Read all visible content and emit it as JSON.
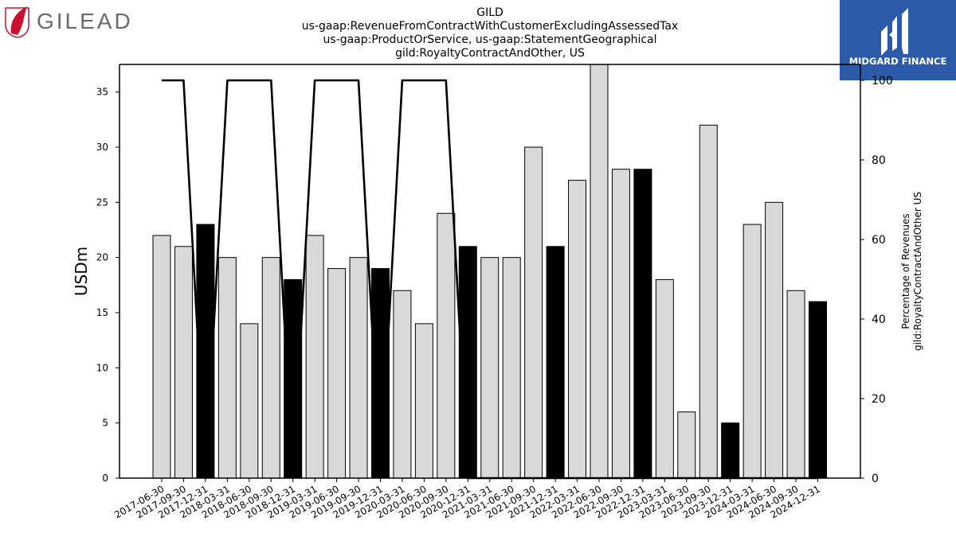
{
  "logos": {
    "left": {
      "text": "GILEAD",
      "color": "#6b6b6b",
      "accent": "#c8102e"
    },
    "right": {
      "text": "MIDGARD FINANCE",
      "bg": "#2b5aa9",
      "fg": "#ffffff"
    }
  },
  "chart_data": {
    "type": "bar",
    "title_lines": [
      "GILD",
      "us-gaap:RevenueFromContractWithCustomerExcludingAssessedTax",
      "us-gaap:ProductOrService, us-gaap:StatementGeographical",
      "gild:RoyaltyContractAndOther, US"
    ],
    "ylabel": "USDm",
    "ylabel_right": [
      "Percentage of Revenues",
      "gild:RoyaltyContractAndOther US"
    ],
    "ylim": [
      0,
      37.5
    ],
    "yticks": [
      0,
      5,
      10,
      15,
      20,
      25,
      30,
      35
    ],
    "ylim_right": [
      0,
      104
    ],
    "yticks_right": [
      0,
      20,
      40,
      60,
      80,
      100
    ],
    "categories": [
      "2017-06-30",
      "2017-09-30",
      "2017-12-31",
      "2018-03-31",
      "2018-06-30",
      "2018-09-30",
      "2018-12-31",
      "2019-03-31",
      "2019-06-30",
      "2019-09-30",
      "2019-12-31",
      "2020-03-31",
      "2020-06-30",
      "2020-09-30",
      "2020-12-31",
      "2021-03-31",
      "2021-06-30",
      "2021-09-30",
      "2021-12-31",
      "2022-03-31",
      "2022-06-30",
      "2022-09-30",
      "2022-12-31",
      "2023-03-31",
      "2023-06-30",
      "2023-09-30",
      "2023-12-31",
      "2024-03-31",
      "2024-06-30",
      "2024-09-30",
      "2024-12-31"
    ],
    "series": [
      {
        "type": "bar",
        "values": [
          22,
          21,
          23,
          20,
          14,
          20,
          18,
          22,
          19,
          20,
          19,
          17,
          14,
          24,
          21,
          20,
          20,
          30,
          21,
          27,
          38,
          28,
          28,
          18,
          6,
          32,
          5,
          23,
          25,
          17,
          16
        ],
        "highlight": [
          false,
          false,
          true,
          false,
          false,
          false,
          true,
          false,
          false,
          false,
          true,
          false,
          false,
          false,
          true,
          false,
          false,
          false,
          true,
          false,
          false,
          false,
          true,
          false,
          false,
          false,
          true,
          false,
          false,
          false,
          true
        ],
        "color": "#d9d9d9",
        "highlight_color": "#000000"
      },
      {
        "type": "line",
        "axis": "right",
        "values": [
          100,
          100,
          0,
          100,
          100,
          100,
          0,
          100,
          100,
          100,
          0,
          100,
          100,
          100,
          0,
          0,
          0,
          0,
          0,
          0,
          0,
          0,
          0,
          0,
          0,
          0,
          0,
          0,
          0,
          0,
          0
        ],
        "color": "#000000"
      }
    ],
    "grid": false,
    "legend": "none"
  }
}
